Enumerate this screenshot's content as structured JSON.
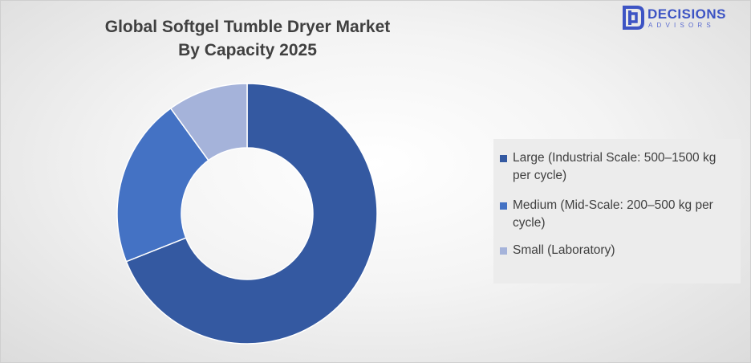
{
  "header": {
    "title_line1": "Global Softgel Tumble Dryer Market",
    "title_line2": "By Capacity 2025"
  },
  "logo": {
    "icon": "decisions-advisors-logo-icon",
    "name": "DECISIONS",
    "sub": "ADVISORS",
    "color": "#3d54c4"
  },
  "chart_data": {
    "type": "pie",
    "variant": "donut",
    "title": "Global Softgel Tumble Dryer Market By Capacity 2025",
    "categories": [
      "Large (Industrial Scale: 500–1500 kg per cycle)",
      "Medium (Mid-Scale: 200–500 kg per cycle)",
      "Small (Laboratory)"
    ],
    "values": [
      69,
      21,
      10
    ],
    "colors": [
      "#3459a1",
      "#4472c4",
      "#a5b3da"
    ],
    "legend_position": "right"
  }
}
